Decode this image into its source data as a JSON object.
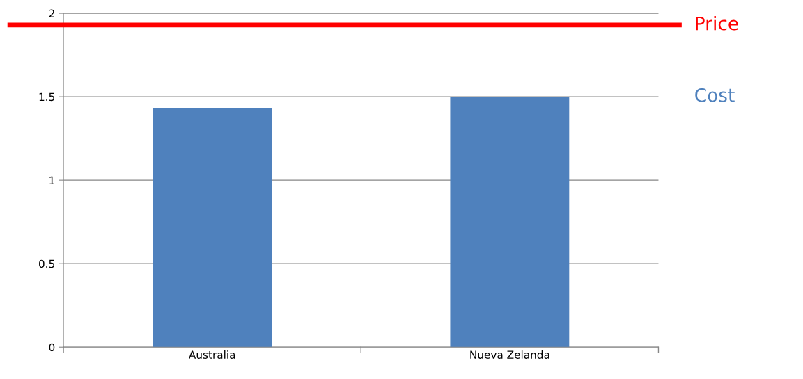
{
  "chart_data": {
    "type": "bar",
    "categories": [
      "Australia",
      "Nueva Zelanda"
    ],
    "series": [
      {
        "name": "Cost",
        "color": "#4f81bd",
        "values": [
          1.43,
          1.5
        ]
      }
    ],
    "ylim": [
      0,
      2
    ],
    "yticks": [
      0,
      0.5,
      1,
      1.5,
      2
    ],
    "grid": "y",
    "ref_lines": [
      {
        "axis": "y",
        "value": 1.93,
        "label": "Price",
        "color": "#ff0000"
      }
    ]
  }
}
